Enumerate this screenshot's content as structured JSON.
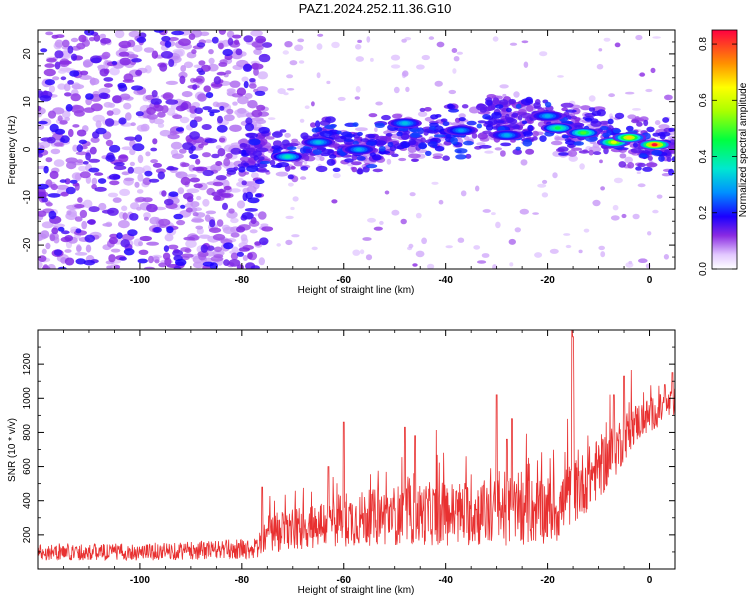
{
  "title": "PAZ1.2024.252.11.36.G10",
  "chart_data": [
    {
      "type": "heatmap",
      "xlabel": "Height of straight line (km)",
      "ylabel": "Frequency (Hz)",
      "xlim": [
        -120,
        5
      ],
      "ylim": [
        -25,
        25
      ],
      "xticks": [
        -100,
        -80,
        -60,
        -40,
        -20,
        0
      ],
      "yticks": [
        -20,
        -10,
        0,
        10,
        20
      ],
      "colorbar": {
        "label": "Normalized spectral amplitude",
        "range": [
          0,
          0.85
        ],
        "ticks": [
          0.0,
          0.2,
          0.4,
          0.6,
          0.8
        ]
      },
      "ridge": [
        {
          "x": -76,
          "y": -1.5
        },
        {
          "x": -70,
          "y": -1
        },
        {
          "x": -65,
          "y": 1.5
        },
        {
          "x": -60,
          "y": 1
        },
        {
          "x": -55,
          "y": 0
        },
        {
          "x": -50,
          "y": 2
        },
        {
          "x": -45,
          "y": 3
        },
        {
          "x": -40,
          "y": 3.5
        },
        {
          "x": -35,
          "y": 4
        },
        {
          "x": -30,
          "y": 4.5
        },
        {
          "x": -25,
          "y": 5
        },
        {
          "x": -20,
          "y": 5
        },
        {
          "x": -15,
          "y": 4
        },
        {
          "x": -10,
          "y": 3.5
        },
        {
          "x": -5,
          "y": 2
        },
        {
          "x": 0,
          "y": 1
        },
        {
          "x": 5,
          "y": 0.5
        }
      ],
      "peaks": [
        {
          "x": -71,
          "y": -1.5,
          "amp": 0.38
        },
        {
          "x": -65,
          "y": 1.5,
          "amp": 0.32
        },
        {
          "x": -57,
          "y": 0,
          "amp": 0.3
        },
        {
          "x": -48,
          "y": 5.5,
          "amp": 0.32
        },
        {
          "x": -37,
          "y": 4,
          "amp": 0.28
        },
        {
          "x": -28,
          "y": 3,
          "amp": 0.3
        },
        {
          "x": -20,
          "y": 7,
          "amp": 0.3
        },
        {
          "x": -18,
          "y": 4.5,
          "amp": 0.45
        },
        {
          "x": -13,
          "y": 3.5,
          "amp": 0.5
        },
        {
          "x": -7,
          "y": 1.5,
          "amp": 0.62
        },
        {
          "x": -4,
          "y": 2.5,
          "amp": 0.68
        },
        {
          "x": 1,
          "y": 1,
          "amp": 0.84
        }
      ]
    },
    {
      "type": "line",
      "xlabel": "Height of straight line (km)",
      "ylabel": "SNR (10 * v/v)",
      "xlim": [
        -120,
        5
      ],
      "ylim": [
        0,
        1400
      ],
      "xticks": [
        -100,
        -80,
        -60,
        -40,
        -20,
        0
      ],
      "yticks": [
        200,
        400,
        600,
        800,
        1000,
        1200
      ],
      "color": "#e83030",
      "envelope": [
        {
          "x": -120,
          "mean": 100,
          "spread": 50
        },
        {
          "x": -100,
          "mean": 100,
          "spread": 50
        },
        {
          "x": -77,
          "mean": 120,
          "spread": 60
        },
        {
          "x": -75,
          "mean": 200,
          "spread": 120
        },
        {
          "x": -62,
          "mean": 280,
          "spread": 150
        },
        {
          "x": -48,
          "mean": 320,
          "spread": 180
        },
        {
          "x": -32,
          "mean": 330,
          "spread": 200
        },
        {
          "x": -18,
          "mean": 350,
          "spread": 200
        },
        {
          "x": -8,
          "mean": 650,
          "spread": 180
        },
        {
          "x": -3,
          "mean": 850,
          "spread": 120
        },
        {
          "x": 5,
          "mean": 980,
          "spread": 80
        }
      ],
      "spikes": [
        {
          "x": -76,
          "y": 480
        },
        {
          "x": -63,
          "y": 600
        },
        {
          "x": -60,
          "y": 860
        },
        {
          "x": -48,
          "y": 830
        },
        {
          "x": -46,
          "y": 780
        },
        {
          "x": -30,
          "y": 1020
        },
        {
          "x": -28,
          "y": 760
        },
        {
          "x": -27,
          "y": 880
        },
        {
          "x": -15.2,
          "y": 1400
        },
        {
          "x": -15,
          "y": 1360
        },
        {
          "x": -7,
          "y": 1020
        },
        {
          "x": -5,
          "y": 1130
        },
        {
          "x": 3,
          "y": 1080
        },
        {
          "x": 4.5,
          "y": 1150
        }
      ]
    }
  ]
}
